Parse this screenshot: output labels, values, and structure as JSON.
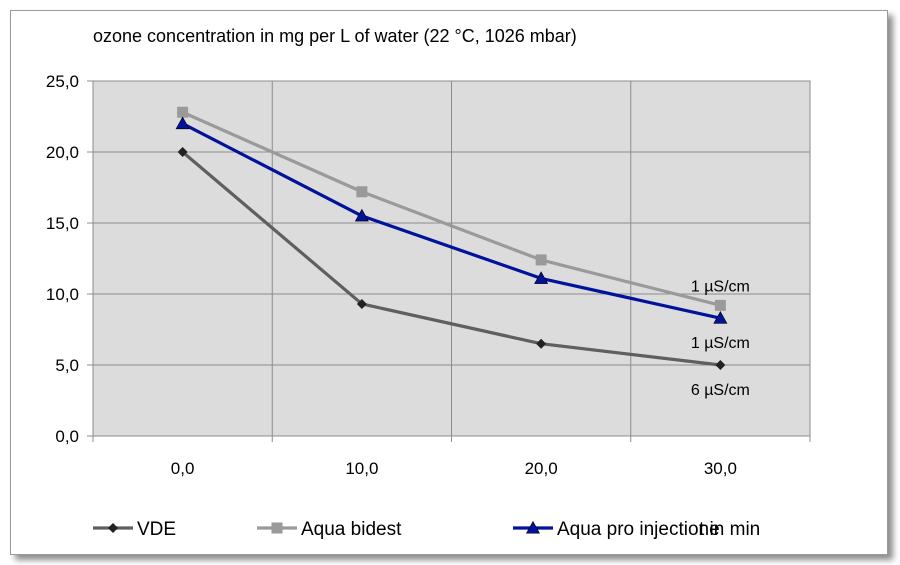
{
  "chart_data": {
    "type": "line",
    "title": "ozone concentration in mg per L of water (22 °C, 1026 mbar)",
    "xlabel": "t in min",
    "ylabel": "",
    "x": [
      0,
      10,
      20,
      30
    ],
    "x_tick_labels": [
      "0,0",
      "10,0",
      "20,0",
      "30,0"
    ],
    "y_tick_labels": [
      "0,0",
      "5,0",
      "10,0",
      "15,0",
      "20,0",
      "25,0"
    ],
    "ylim": [
      0,
      25
    ],
    "xlim": [
      -5,
      35
    ],
    "grid": true,
    "legend_position": "bottom",
    "series": [
      {
        "name": "VDE",
        "values": [
          20.0,
          9.3,
          6.5,
          5.0
        ],
        "color": "#5f5f5f",
        "marker": "diamond"
      },
      {
        "name": "Aqua bidest",
        "values": [
          22.8,
          17.2,
          12.4,
          9.2
        ],
        "color": "#9a9a9a",
        "marker": "square"
      },
      {
        "name": "Aqua pro injectione",
        "values": [
          22.0,
          15.5,
          11.1,
          8.3
        ],
        "color": "#00139a",
        "marker": "triangle"
      }
    ],
    "annotations": [
      {
        "text": "1 µS/cm",
        "x": 30,
        "y": 9.2,
        "placement": "above"
      },
      {
        "text": "1 µS/cm",
        "x": 30,
        "y": 8.3,
        "placement": "below"
      },
      {
        "text": "6 µS/cm",
        "x": 30,
        "y": 5.0,
        "placement": "below"
      }
    ],
    "plot_background": "#dcdcdc",
    "grid_color": "#8c8c8c"
  }
}
